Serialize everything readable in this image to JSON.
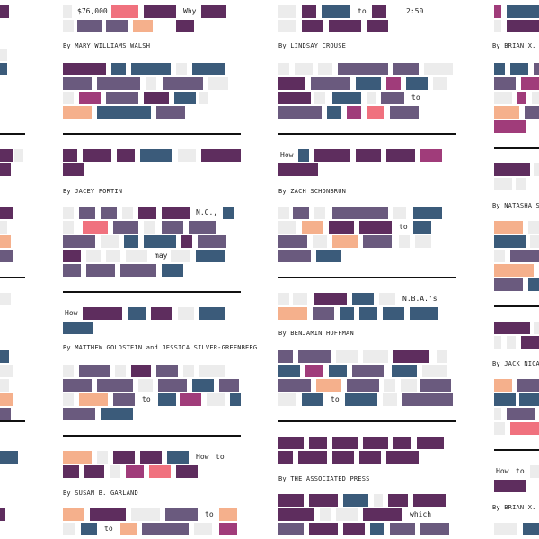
{
  "palette": {
    "plum": "#5e2d5e",
    "slate": "#3b5b7a",
    "mauve": "#6a5a7e",
    "magenta": "#a03c7a",
    "pink": "#f0717e",
    "peach": "#f5b08c",
    "ghost": "#ececec"
  },
  "columns": [
    {
      "id": "col-0",
      "articles": [
        {
          "headline": [],
          "byline": ""
        }
      ]
    },
    {
      "id": "col-1",
      "articles": [
        {
          "headline_words": [
            "$76,000",
            "Why"
          ],
          "byline": "By MARY WILLIAMS WALSH"
        },
        {
          "headline_words": [],
          "byline": "By JACEY FORTIN"
        },
        {
          "headline_words": [
            "N.C.,",
            "may"
          ],
          "byline": ""
        },
        {
          "headline_words": [
            "How"
          ],
          "byline": "By MATTHEW GOLDSTEIN and JESSICA SILVER-GREENBERG"
        },
        {
          "headline_words": [
            "to"
          ],
          "byline": ""
        },
        {
          "headline_words": [
            "How",
            "to"
          ],
          "byline": "By SUSAN B. GARLAND"
        },
        {
          "headline_words": [
            "to",
            "to"
          ],
          "byline": ""
        }
      ]
    },
    {
      "id": "col-2",
      "articles": [
        {
          "headline_words": [
            "to",
            "2:50",
            "to"
          ],
          "byline": "By LINDSAY CROUSE"
        },
        {
          "headline_words": [
            "How"
          ],
          "byline": "By ZACH SCHONBRUN"
        },
        {
          "headline_words": [
            "to"
          ],
          "byline": ""
        },
        {
          "headline_words": [
            "N.B.A.'s"
          ],
          "byline": "By BENJAMIN HOFFMAN"
        },
        {
          "headline_words": [
            "to"
          ],
          "byline": ""
        },
        {
          "headline_words": [
            "which"
          ],
          "byline": "By THE ASSOCIATED PRESS"
        }
      ]
    },
    {
      "id": "col-3",
      "articles": [
        {
          "headline_words": [],
          "byline": "By BRIAN X. C"
        },
        {
          "headline_words": [],
          "byline": "By NATASHA SI"
        },
        {
          "headline_words": [],
          "byline": "By JACK NICAS"
        },
        {
          "headline_words": [
            "How",
            "to"
          ],
          "byline": "By BRIAN X. C"
        }
      ]
    }
  ],
  "texts": {
    "w_76000": "$76,000",
    "w_why": "Why",
    "w_to_a": "to",
    "w_250": "2:50",
    "w_to_b": "to",
    "by_walsh": "By MARY WILLIAMS WALSH",
    "by_crouse": "By LINDSAY CROUSE",
    "by_brian1": "By BRIAN X. C",
    "w_how_a": "How",
    "by_fortin": "By JACEY FORTIN",
    "by_schonbrun": "By ZACH SCHONBRUN",
    "by_natasha": "By NATASHA SI",
    "w_nc": "N.C.,",
    "w_to_c": "to",
    "w_may": "may",
    "w_nba": "N.B.A.'s",
    "w_how_b": "How",
    "by_goldstein": "By MATTHEW GOLDSTEIN and JESSICA SILVER-GREENBERG",
    "by_hoffman": "By BENJAMIN HOFFMAN",
    "by_jack": "By JACK NICAS",
    "w_to_d": "to",
    "w_to_e": "to",
    "w_how_c": "How",
    "w_to_f": "to",
    "w_how_d": "How",
    "w_to_g": "to",
    "by_garland": "By SUSAN B. GARLAND",
    "by_ap": "By THE ASSOCIATED PRESS",
    "by_brian2": "By BRIAN X. C",
    "w_to_h": "to",
    "w_to_i": "to",
    "w_which": "which"
  }
}
